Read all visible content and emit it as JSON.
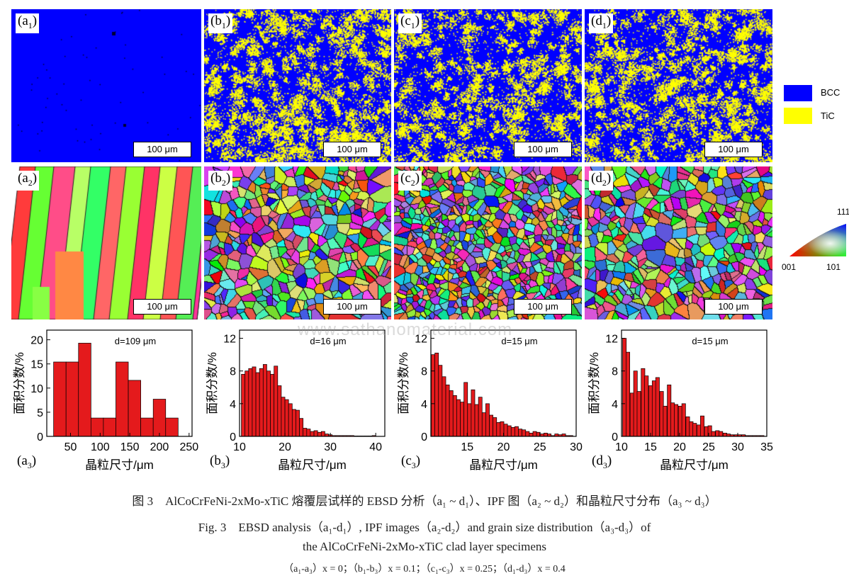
{
  "panels_row1": [
    {
      "id": "a1",
      "letter": "a",
      "sub": "1",
      "scale": "100 μm"
    },
    {
      "id": "b1",
      "letter": "b",
      "sub": "1",
      "scale": "100 μm"
    },
    {
      "id": "c1",
      "letter": "c",
      "sub": "1",
      "scale": "100 μm"
    },
    {
      "id": "d1",
      "letter": "d",
      "sub": "1",
      "scale": "100 μm"
    }
  ],
  "panels_row2": [
    {
      "id": "a2",
      "letter": "a",
      "sub": "2",
      "scale": "100 μm"
    },
    {
      "id": "b2",
      "letter": "b",
      "sub": "2",
      "scale": "100 μm"
    },
    {
      "id": "c2",
      "letter": "c",
      "sub": "2",
      "scale": "100 μm"
    },
    {
      "id": "d2",
      "letter": "d",
      "sub": "2",
      "scale": "100 μm"
    }
  ],
  "phase_legend": {
    "items": [
      {
        "label": "BCC",
        "color": "#0000ff"
      },
      {
        "label": "TiC",
        "color": "#ffff00"
      }
    ]
  },
  "ipf_legend": {
    "top": "111",
    "left": "001",
    "right": "101"
  },
  "watermark": "www.sathanomaterial.com",
  "chart_data": [
    {
      "type": "bar",
      "id": "a3",
      "letter": "a",
      "sub": "3",
      "annotation": "d=109 μm",
      "xlabel": "晶粒尺寸/μm",
      "ylabel": "面积分数/%",
      "xlim": [
        10,
        255
      ],
      "ylim": [
        0,
        22
      ],
      "xticks": [
        50,
        100,
        150,
        200,
        250
      ],
      "yticks": [
        0,
        5,
        10,
        15,
        20
      ],
      "bin_width": 21,
      "x": [
        32,
        53,
        74,
        95,
        116,
        137,
        158,
        179,
        200,
        221
      ],
      "values": [
        15.4,
        15.4,
        19.3,
        3.8,
        3.8,
        15.4,
        11.6,
        3.8,
        7.7,
        3.8
      ]
    },
    {
      "type": "bar",
      "id": "b3",
      "letter": "b",
      "sub": "3",
      "annotation": "d=16 μm",
      "xlabel": "晶粒尺寸/μm",
      "ylabel": "面积分数/%",
      "xlim": [
        10,
        42
      ],
      "ylim": [
        0,
        13
      ],
      "xticks": [
        10,
        20,
        30,
        40
      ],
      "yticks": [
        0,
        4,
        8,
        12
      ],
      "bin_width": 0.8,
      "x": [
        10.8,
        11.6,
        12.4,
        13.2,
        14.0,
        14.8,
        15.6,
        16.4,
        17.2,
        18.0,
        18.8,
        19.6,
        20.4,
        21.2,
        22.0,
        22.8,
        23.6,
        24.4,
        25.2,
        26.0,
        26.8,
        27.6,
        28.4,
        29.2,
        30.0,
        30.8,
        31.6,
        32.4,
        33.2,
        34.0,
        34.8,
        35.6,
        36.4,
        37.2,
        38.0,
        38.8,
        39.6
      ],
      "values": [
        7.6,
        8.0,
        8.3,
        8.5,
        7.8,
        8.3,
        8.8,
        8.0,
        7.6,
        8.6,
        6.2,
        4.8,
        4.5,
        4.0,
        3.3,
        3.2,
        2.2,
        1.0,
        0.9,
        0.6,
        0.7,
        0.5,
        0.6,
        0.3,
        0.2,
        0.1,
        0.1,
        0.1,
        0.1,
        0.1,
        0.1,
        0.05,
        0.05,
        0.05,
        0.05,
        0.05,
        0.1
      ]
    },
    {
      "type": "bar",
      "id": "c3",
      "letter": "c",
      "sub": "3",
      "annotation": "d=15 μm",
      "xlabel": "晶粒尺寸/μm",
      "ylabel": "面积分数/%",
      "xlim": [
        10,
        30
      ],
      "ylim": [
        0,
        13
      ],
      "xticks": [
        15,
        20,
        25,
        30
      ],
      "yticks": [
        0,
        4,
        8,
        12
      ],
      "bin_width": 0.5,
      "x": [
        10.3,
        10.8,
        11.3,
        11.8,
        12.3,
        12.8,
        13.3,
        13.8,
        14.3,
        14.8,
        15.3,
        15.8,
        16.3,
        16.8,
        17.3,
        17.8,
        18.3,
        18.8,
        19.3,
        19.8,
        20.3,
        20.8,
        21.3,
        21.8,
        22.3,
        22.8,
        23.3,
        23.8,
        24.3,
        24.8,
        25.3,
        25.8,
        26.3,
        26.8,
        27.3,
        27.8,
        28.3,
        28.8,
        29.3
      ],
      "values": [
        10.0,
        10.2,
        8.7,
        7.3,
        6.3,
        5.6,
        5.0,
        4.5,
        4.2,
        6.6,
        4.0,
        5.7,
        3.9,
        4.8,
        2.9,
        4.0,
        2.6,
        2.3,
        1.7,
        1.8,
        1.5,
        1.3,
        1.1,
        1.2,
        0.9,
        0.8,
        0.6,
        0.4,
        0.6,
        0.5,
        0.3,
        0.4,
        0.3,
        0.1,
        0.3,
        0.2,
        0.3,
        0.1,
        0.1
      ]
    },
    {
      "type": "bar",
      "id": "d3",
      "letter": "d",
      "sub": "3",
      "annotation": "d=15 μm",
      "xlabel": "晶粒尺寸/μm",
      "ylabel": "面积分数/%",
      "xlim": [
        10,
        35
      ],
      "ylim": [
        0,
        13
      ],
      "xticks": [
        10,
        15,
        20,
        25,
        30,
        35
      ],
      "yticks": [
        0,
        4,
        8,
        12
      ],
      "bin_width": 0.64,
      "x": [
        10.5,
        11.1,
        11.8,
        12.4,
        13.0,
        13.7,
        14.3,
        15.0,
        15.6,
        16.2,
        16.9,
        17.5,
        18.2,
        18.8,
        19.4,
        20.1,
        20.7,
        21.4,
        22.0,
        22.6,
        23.3,
        23.9,
        24.6,
        25.2,
        25.8,
        26.5,
        27.1,
        27.8,
        28.4,
        29.0,
        29.7,
        30.3,
        31.0,
        31.6,
        32.2,
        32.9,
        33.5,
        34.2
      ],
      "values": [
        12.0,
        10.3,
        5.3,
        8.0,
        5.5,
        8.3,
        7.4,
        6.2,
        6.8,
        7.2,
        5.5,
        3.7,
        6.3,
        4.1,
        3.9,
        3.7,
        4.0,
        2.4,
        1.8,
        1.6,
        1.4,
        2.5,
        1.2,
        1.3,
        0.6,
        0.7,
        0.6,
        0.4,
        0.3,
        0.2,
        0.2,
        0.2,
        0.2,
        0.1,
        0.1,
        0.1,
        0.1,
        0.1
      ]
    }
  ],
  "caption": {
    "line1": "图 3　AlCoCrFeNi-2xMo-xTiC 熔覆层试样的 EBSD 分析（a₁ ~ d₁）、IPF 图（a₂ ~ d₂）和晶粒尺寸分布（a₃ ~ d₃）",
    "line2": "Fig. 3　EBSD analysis（a₁-d₁）, IPF images（a₂-d₂）and grain size distribution（a₃-d₃）of",
    "line3": "the AlCoCrFeNi-2xMo-xTiC clad layer specimens",
    "line4": "（a₁-a₃）x = 0；（b₁-b₃）x = 0.1；（c₁-c₃）x = 0.25；（d₁-d₃）x = 0.4"
  }
}
